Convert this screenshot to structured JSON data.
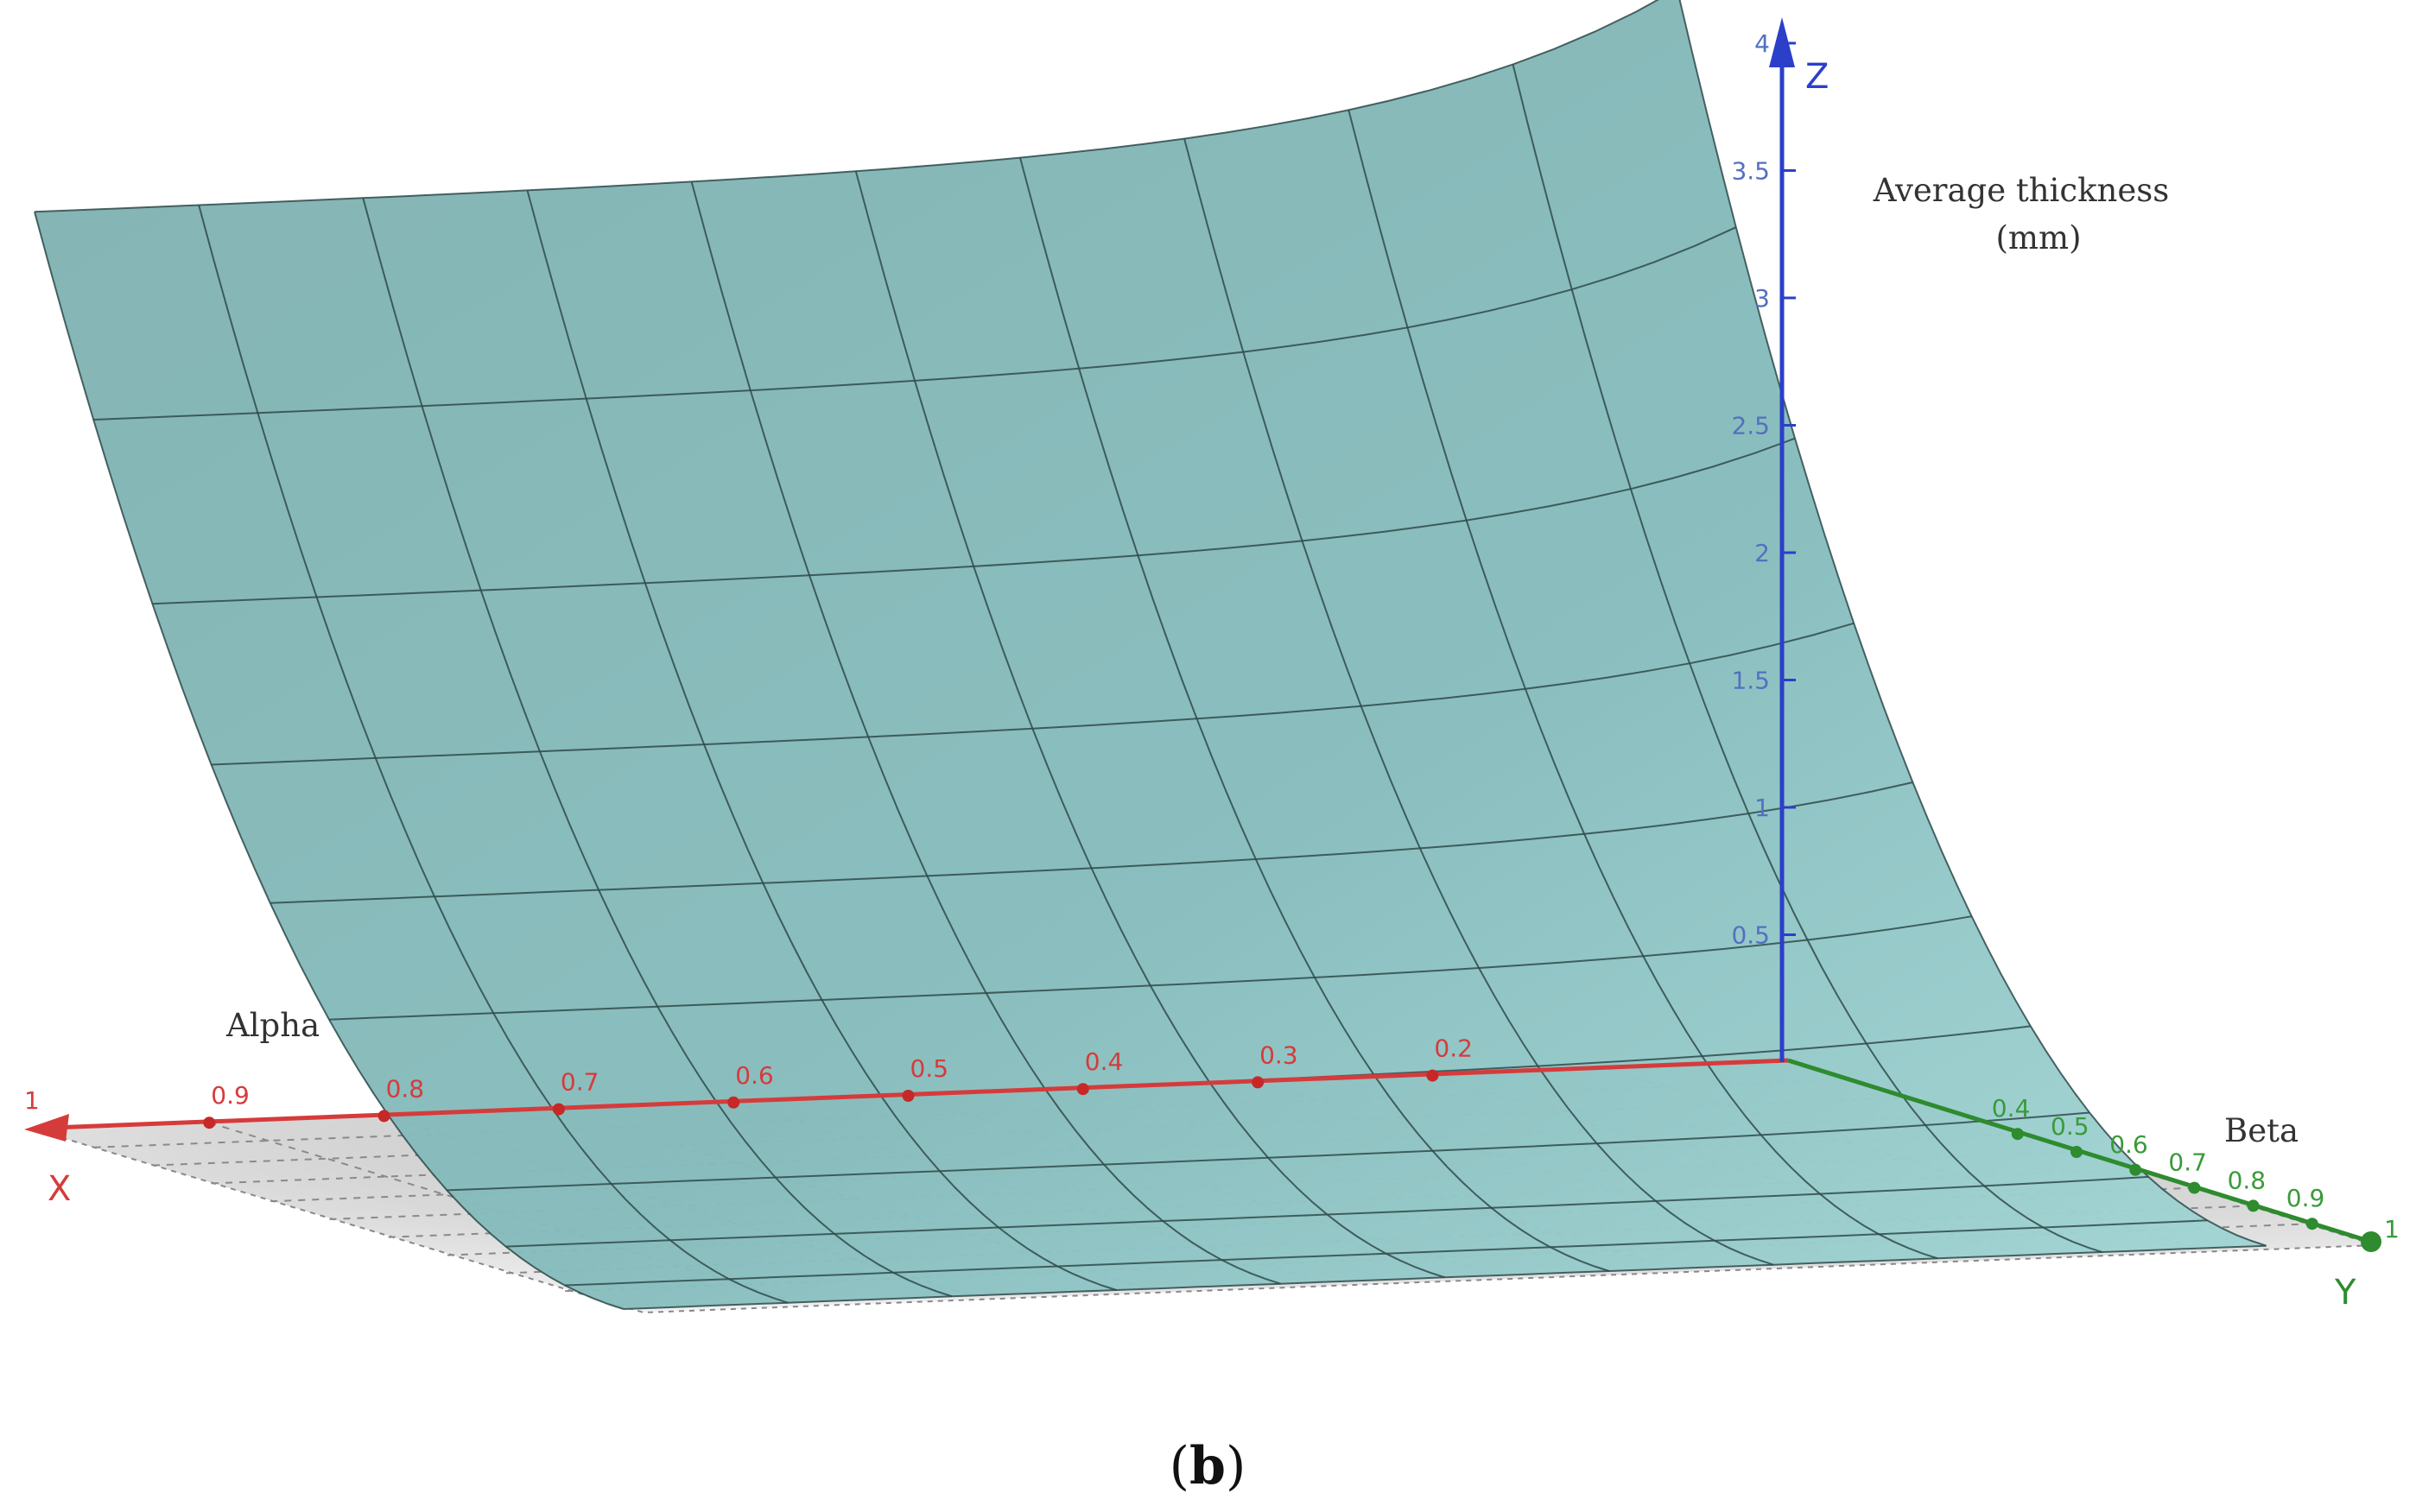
{
  "caption": {
    "open": "(",
    "letter": "b",
    "close": ")"
  },
  "chart_data": {
    "type": "surface3d",
    "title": "",
    "axes": {
      "x": {
        "letter": "X",
        "label": "Alpha",
        "range": [
          0,
          1
        ],
        "end_label": "1",
        "ticks": [
          "0.9",
          "0.8",
          "0.7",
          "0.6",
          "0.5",
          "0.4",
          "0.3",
          "0.2"
        ]
      },
      "y": {
        "letter": "Y",
        "label": "Beta",
        "range": [
          0,
          1
        ],
        "end_label": "1",
        "ticks": [
          "0.4",
          "0.5",
          "0.6",
          "0.7",
          "0.8",
          "0.9"
        ]
      },
      "z": {
        "letter": "Z",
        "label_line1": "Average thickness",
        "label_line2": "(mm)",
        "range": [
          0,
          4
        ],
        "ticks": [
          "4",
          "3.5",
          "3",
          "2.5",
          "2",
          "1.5",
          "1",
          "0.5"
        ]
      }
    },
    "surface": {
      "description_of_function": "thickness rises steeply as alpha and beta approach 0",
      "z_at_alpha1_beta0": 3.6,
      "z_at_alpha1_beta1": 0.08,
      "z_at_alpha0_beta0": 4.0,
      "z_at_alpha0_beta1": 0.0
    },
    "colors": {
      "surface": "#8cc1c1",
      "mesh": "#2f4a4a",
      "x_axis": "#d63b3b",
      "y_axis": "#2e8b2e",
      "z_axis": "#2b3fc9",
      "floor": "#cfcfcf"
    },
    "grid": true
  }
}
